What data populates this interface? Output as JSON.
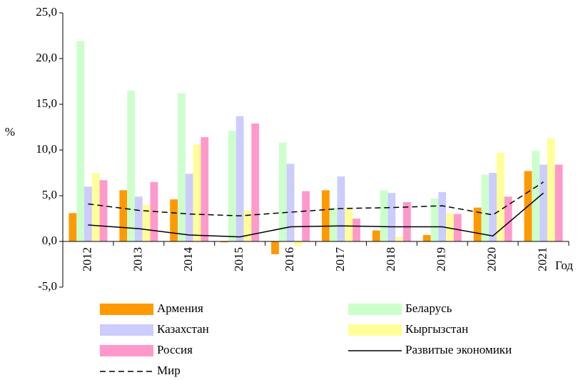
{
  "chart_data": {
    "type": "bar",
    "categories": [
      "2012",
      "2013",
      "2014",
      "2015",
      "2016",
      "2017",
      "2018",
      "2019",
      "2020",
      "2021"
    ],
    "y_label": "%",
    "x_label": "Год",
    "ylim": [
      -5,
      25
    ],
    "yticks": [
      {
        "value": -5,
        "label": "-5,0"
      },
      {
        "value": 0,
        "label": "0,0"
      },
      {
        "value": 5,
        "label": "5,0"
      },
      {
        "value": 10,
        "label": "10,0"
      },
      {
        "value": 15,
        "label": "15,0"
      },
      {
        "value": 20,
        "label": "20,0"
      },
      {
        "value": 25,
        "label": "25,0"
      }
    ],
    "series": [
      {
        "name": "Армения",
        "color": "#ff9900",
        "type": "bar",
        "values": [
          3.1,
          5.6,
          4.6,
          -0.1,
          -1.4,
          5.6,
          1.2,
          0.7,
          3.7,
          7.7
        ]
      },
      {
        "name": "Беларусь",
        "color": "#ccffcc",
        "type": "bar",
        "values": [
          21.9,
          16.5,
          16.2,
          12.1,
          10.8,
          3.7,
          5.6,
          4.7,
          7.3,
          9.9
        ]
      },
      {
        "name": "Казахстан",
        "color": "#ccccff",
        "type": "bar",
        "values": [
          6.0,
          4.9,
          7.4,
          13.7,
          8.5,
          7.1,
          5.3,
          5.4,
          7.5,
          8.4
        ]
      },
      {
        "name": "Кыргызстан",
        "color": "#ffff99",
        "type": "bar",
        "values": [
          7.5,
          4.0,
          10.6,
          3.4,
          -0.5,
          3.7,
          0.5,
          3.1,
          9.7,
          11.3
        ]
      },
      {
        "name": "Россия",
        "color": "#ff99cc",
        "type": "bar",
        "values": [
          6.7,
          6.5,
          11.4,
          12.9,
          5.5,
          2.5,
          4.3,
          3.0,
          4.9,
          8.4
        ]
      },
      {
        "name": "Развитые экономики",
        "color": "#000000",
        "type": "line",
        "line_style": "solid",
        "values": [
          1.8,
          1.4,
          0.7,
          0.5,
          1.6,
          1.7,
          1.6,
          1.6,
          0.6,
          5.3
        ]
      },
      {
        "name": "Мир",
        "color": "#000000",
        "type": "line",
        "line_style": "dashed",
        "values": [
          4.1,
          3.4,
          3.0,
          2.8,
          3.2,
          3.6,
          3.7,
          3.9,
          2.9,
          6.5
        ]
      }
    ]
  }
}
